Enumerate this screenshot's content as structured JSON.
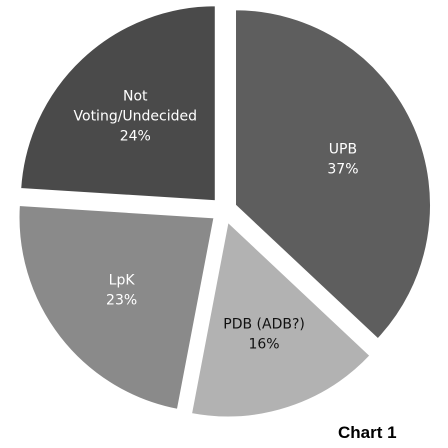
{
  "chart_data": {
    "type": "pie",
    "title": "",
    "caption": "Chart 1",
    "slices": [
      {
        "label": "UPB",
        "value": 37,
        "value_label": "37%",
        "color": "#5e5e5e"
      },
      {
        "label": "PDB (ADB?)",
        "value": 16,
        "value_label": "16%",
        "color": "#b2b2b2"
      },
      {
        "label": "LpK",
        "value": 23,
        "value_label": "23%",
        "color": "#8a8a8a"
      },
      {
        "label": "Not Voting/Undecided",
        "value": 24,
        "value_label": "24%",
        "color": "#4a4a4a"
      }
    ],
    "start_angle_deg": 0,
    "direction": "clockwise",
    "exploded": true,
    "legend": "none"
  }
}
